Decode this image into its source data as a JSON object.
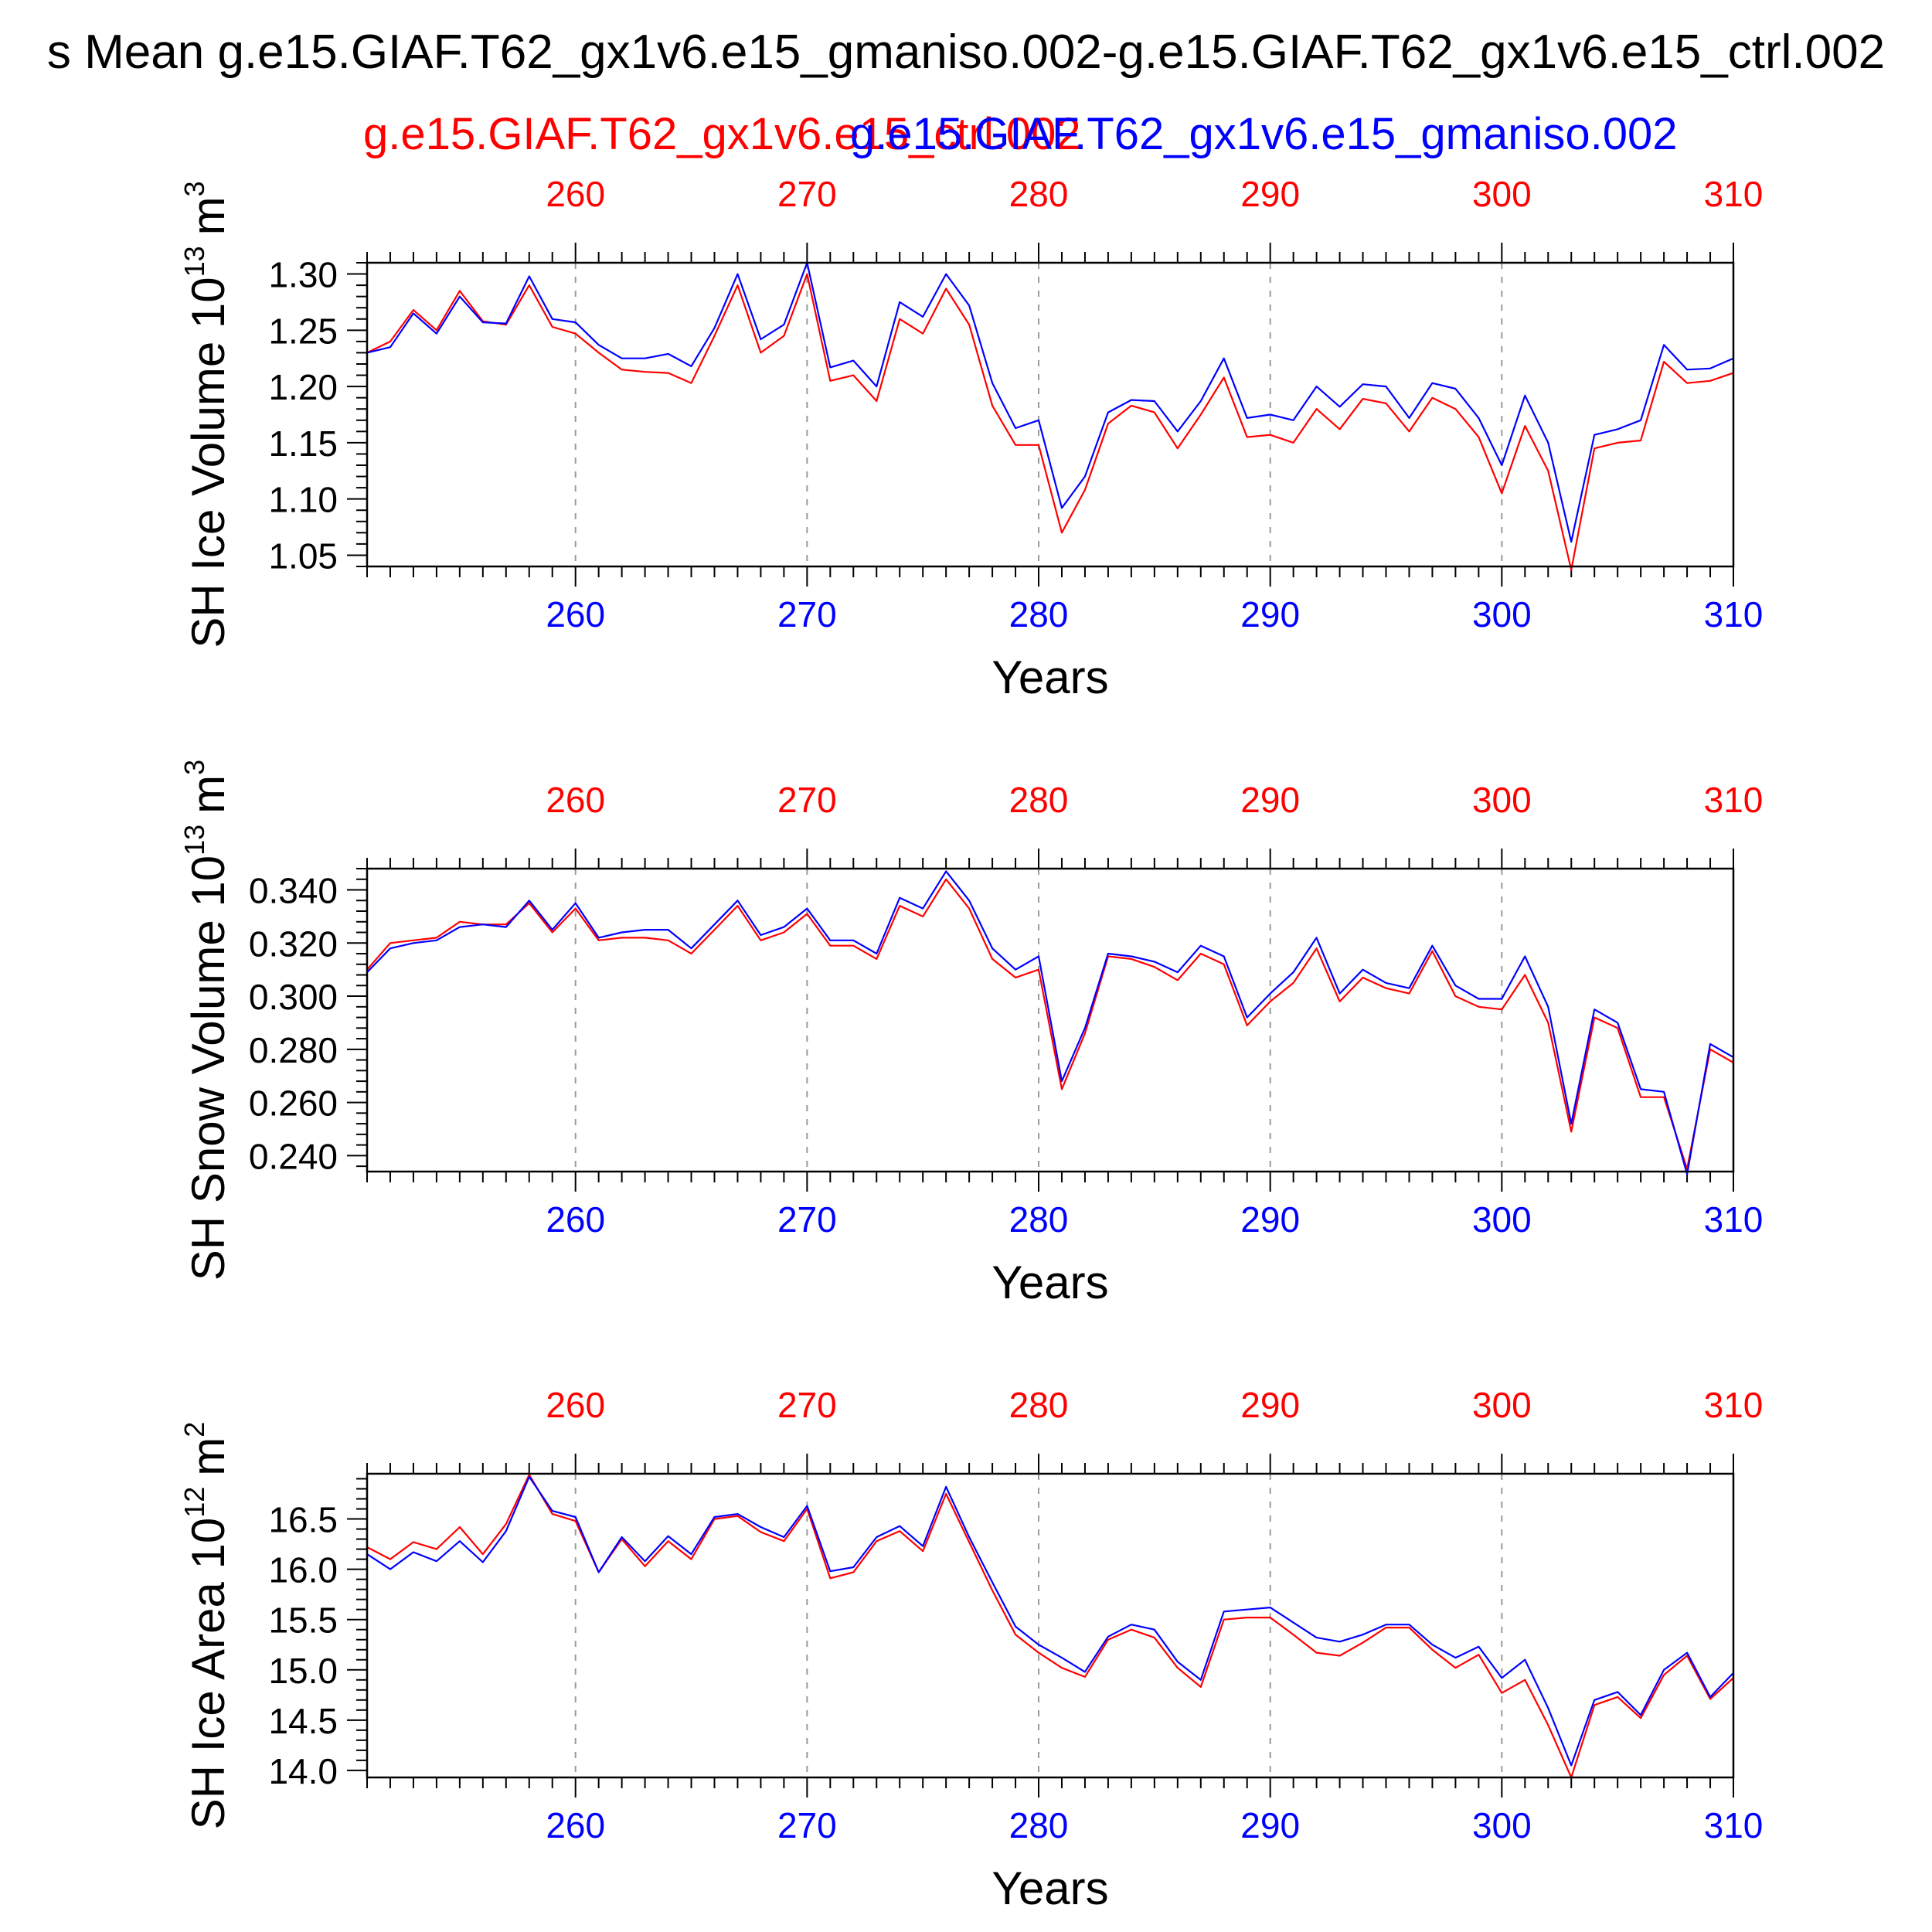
{
  "title": "s Mean g.e15.GIAF.T62_gx1v6.e15_gmaniso.002-g.e15.GIAF.T62_gx1v6.e15_ctrl.002",
  "legend": {
    "red_label": "g.e15.GIAF.T62_gx1v6.e15_ctrl.002",
    "blue_label": "g.e15.GIAF.T62_gx1v6.e15_gmaniso.002"
  },
  "colors": {
    "red": "#ff0000",
    "blue": "#0000ff",
    "axis": "#000000",
    "grid": "#9a9a9a"
  },
  "chart_data": [
    {
      "type": "line",
      "ylabel_main": "SH Ice Volume 10",
      "ylabel_exp": "13",
      "ylabel_unit": "m",
      "ylabel_unit_exp": "3",
      "xlabel": "Years",
      "xlim": [
        251,
        310
      ],
      "ylim": [
        1.04,
        1.31
      ],
      "grid": true,
      "xticks": [
        260,
        270,
        280,
        290,
        300,
        310
      ],
      "xtick_labels": [
        "260",
        "270",
        "280",
        "290",
        "300",
        "310"
      ],
      "yticks": [
        1.05,
        1.1,
        1.15,
        1.2,
        1.25,
        1.3
      ],
      "ytick_labels": [
        "1.05",
        "1.10",
        "1.15",
        "1.20",
        "1.25",
        "1.30"
      ],
      "x": [
        251,
        252,
        253,
        254,
        255,
        256,
        257,
        258,
        259,
        260,
        261,
        262,
        263,
        264,
        265,
        266,
        267,
        268,
        269,
        270,
        271,
        272,
        273,
        274,
        275,
        276,
        277,
        278,
        279,
        280,
        281,
        282,
        283,
        284,
        285,
        286,
        287,
        288,
        289,
        290,
        291,
        292,
        293,
        294,
        295,
        296,
        297,
        298,
        299,
        300,
        301,
        302,
        303,
        304,
        305,
        306,
        307,
        308,
        309,
        310
      ],
      "series": [
        {
          "name": "g.e15.GIAF.T62_gx1v6.e15_ctrl.002",
          "color": "#ff0000",
          "values": [
            1.23,
            1.24,
            1.268,
            1.25,
            1.285,
            1.258,
            1.255,
            1.29,
            1.253,
            1.247,
            1.23,
            1.215,
            1.213,
            1.212,
            1.203,
            1.245,
            1.29,
            1.23,
            1.245,
            1.3,
            1.205,
            1.21,
            1.187,
            1.26,
            1.247,
            1.287,
            1.255,
            1.183,
            1.148,
            1.148,
            1.07,
            1.108,
            1.167,
            1.183,
            1.177,
            1.145,
            1.175,
            1.208,
            1.155,
            1.157,
            1.15,
            1.18,
            1.162,
            1.189,
            1.185,
            1.16,
            1.19,
            1.18,
            1.155,
            1.105,
            1.165,
            1.125,
            1.037,
            1.145,
            1.15,
            1.152,
            1.222,
            1.203,
            1.205,
            1.212
          ]
        },
        {
          "name": "g.e15.GIAF.T62_gx1v6.e15_gmaniso.002",
          "color": "#0000ff",
          "values": [
            1.23,
            1.235,
            1.265,
            1.247,
            1.28,
            1.257,
            1.256,
            1.298,
            1.26,
            1.257,
            1.237,
            1.225,
            1.225,
            1.229,
            1.218,
            1.252,
            1.3,
            1.242,
            1.255,
            1.31,
            1.217,
            1.223,
            1.2,
            1.275,
            1.262,
            1.3,
            1.272,
            1.203,
            1.163,
            1.17,
            1.092,
            1.12,
            1.177,
            1.188,
            1.187,
            1.16,
            1.187,
            1.225,
            1.172,
            1.175,
            1.17,
            1.2,
            1.182,
            1.202,
            1.2,
            1.172,
            1.203,
            1.198,
            1.172,
            1.13,
            1.192,
            1.15,
            1.062,
            1.157,
            1.162,
            1.17,
            1.237,
            1.215,
            1.216,
            1.225
          ]
        }
      ]
    },
    {
      "type": "line",
      "ylabel_main": "SH Snow Volume 10",
      "ylabel_exp": "13",
      "ylabel_unit": "m",
      "ylabel_unit_exp": "3",
      "xlabel": "Years",
      "xlim": [
        251,
        310
      ],
      "ylim": [
        0.234,
        0.348
      ],
      "grid": true,
      "xticks": [
        260,
        270,
        280,
        290,
        300,
        310
      ],
      "xtick_labels": [
        "260",
        "270",
        "280",
        "290",
        "300",
        "310"
      ],
      "yticks": [
        0.24,
        0.26,
        0.28,
        0.3,
        0.32,
        0.34
      ],
      "ytick_labels": [
        "0.240",
        "0.260",
        "0.280",
        "0.300",
        "0.320",
        "0.340"
      ],
      "x": [
        251,
        252,
        253,
        254,
        255,
        256,
        257,
        258,
        259,
        260,
        261,
        262,
        263,
        264,
        265,
        266,
        267,
        268,
        269,
        270,
        271,
        272,
        273,
        274,
        275,
        276,
        277,
        278,
        279,
        280,
        281,
        282,
        283,
        284,
        285,
        286,
        287,
        288,
        289,
        290,
        291,
        292,
        293,
        294,
        295,
        296,
        297,
        298,
        299,
        300,
        301,
        302,
        303,
        304,
        305,
        306,
        307,
        308,
        309,
        310
      ],
      "series": [
        {
          "name": "g.e15.GIAF.T62_gx1v6.e15_ctrl.002",
          "color": "#ff0000",
          "values": [
            0.31,
            0.32,
            0.321,
            0.322,
            0.328,
            0.327,
            0.327,
            0.335,
            0.324,
            0.333,
            0.321,
            0.322,
            0.322,
            0.321,
            0.316,
            0.325,
            0.334,
            0.321,
            0.324,
            0.331,
            0.319,
            0.319,
            0.314,
            0.334,
            0.33,
            0.344,
            0.333,
            0.314,
            0.307,
            0.31,
            0.265,
            0.286,
            0.315,
            0.314,
            0.311,
            0.306,
            0.316,
            0.312,
            0.289,
            0.298,
            0.305,
            0.318,
            0.298,
            0.307,
            0.303,
            0.301,
            0.317,
            0.3,
            0.296,
            0.295,
            0.308,
            0.29,
            0.249,
            0.292,
            0.288,
            0.262,
            0.262,
            0.235,
            0.28,
            0.275
          ]
        },
        {
          "name": "g.e15.GIAF.T62_gx1v6.e15_gmaniso.002",
          "color": "#0000ff",
          "values": [
            0.309,
            0.318,
            0.32,
            0.321,
            0.326,
            0.327,
            0.326,
            0.336,
            0.325,
            0.335,
            0.322,
            0.324,
            0.325,
            0.325,
            0.318,
            0.327,
            0.336,
            0.323,
            0.326,
            0.333,
            0.321,
            0.321,
            0.316,
            0.337,
            0.333,
            0.347,
            0.336,
            0.318,
            0.31,
            0.315,
            0.268,
            0.288,
            0.316,
            0.315,
            0.313,
            0.309,
            0.319,
            0.315,
            0.292,
            0.301,
            0.309,
            0.322,
            0.301,
            0.31,
            0.305,
            0.303,
            0.319,
            0.304,
            0.299,
            0.299,
            0.315,
            0.296,
            0.252,
            0.295,
            0.29,
            0.265,
            0.264,
            0.233,
            0.282,
            0.277
          ]
        }
      ]
    },
    {
      "type": "line",
      "ylabel_main": "SH Ice Area 10",
      "ylabel_exp": "12",
      "ylabel_unit": "m",
      "ylabel_unit_exp": "2",
      "xlabel": "Years",
      "xlim": [
        251,
        310
      ],
      "ylim": [
        13.93,
        16.95
      ],
      "grid": true,
      "xticks": [
        260,
        270,
        280,
        290,
        300,
        310
      ],
      "xtick_labels": [
        "260",
        "270",
        "280",
        "290",
        "300",
        "310"
      ],
      "yticks": [
        14.0,
        14.5,
        15.0,
        15.5,
        16.0,
        16.5
      ],
      "ytick_labels": [
        "14.0",
        "14.5",
        "15.0",
        "15.5",
        "16.0",
        "16.5"
      ],
      "x": [
        251,
        252,
        253,
        254,
        255,
        256,
        257,
        258,
        259,
        260,
        261,
        262,
        263,
        264,
        265,
        266,
        267,
        268,
        269,
        270,
        271,
        272,
        273,
        274,
        275,
        276,
        277,
        278,
        279,
        280,
        281,
        282,
        283,
        284,
        285,
        286,
        287,
        288,
        289,
        290,
        291,
        292,
        293,
        294,
        295,
        296,
        297,
        298,
        299,
        300,
        301,
        302,
        303,
        304,
        305,
        306,
        307,
        308,
        309,
        310
      ],
      "series": [
        {
          "name": "g.e15.GIAF.T62_gx1v6.e15_ctrl.002",
          "color": "#ff0000",
          "values": [
            16.22,
            16.1,
            16.27,
            16.2,
            16.42,
            16.15,
            16.45,
            16.94,
            16.55,
            16.48,
            15.97,
            16.3,
            16.03,
            16.28,
            16.1,
            16.5,
            16.53,
            16.37,
            16.28,
            16.6,
            15.91,
            15.97,
            16.28,
            16.38,
            16.18,
            16.75,
            16.27,
            15.79,
            15.35,
            15.17,
            15.02,
            14.93,
            15.3,
            15.4,
            15.32,
            15.02,
            14.83,
            15.5,
            15.52,
            15.52,
            15.35,
            15.17,
            15.14,
            15.27,
            15.42,
            15.42,
            15.2,
            15.02,
            15.15,
            14.77,
            14.9,
            14.45,
            13.93,
            14.65,
            14.73,
            14.52,
            14.95,
            15.14,
            14.71,
            14.92
          ]
        },
        {
          "name": "g.e15.GIAF.T62_gx1v6.e15_gmaniso.002",
          "color": "#0000ff",
          "values": [
            16.15,
            16.0,
            16.17,
            16.08,
            16.28,
            16.07,
            16.38,
            16.92,
            16.58,
            16.52,
            15.97,
            16.32,
            16.08,
            16.33,
            16.15,
            16.52,
            16.55,
            16.42,
            16.32,
            16.63,
            15.98,
            16.02,
            16.32,
            16.43,
            16.23,
            16.82,
            16.32,
            15.87,
            15.43,
            15.25,
            15.12,
            14.98,
            15.33,
            15.45,
            15.4,
            15.08,
            14.9,
            15.58,
            15.6,
            15.62,
            15.47,
            15.32,
            15.28,
            15.35,
            15.45,
            15.45,
            15.25,
            15.12,
            15.23,
            14.92,
            15.1,
            14.62,
            14.05,
            14.7,
            14.78,
            14.55,
            15.0,
            15.17,
            14.73,
            14.97
          ]
        }
      ]
    }
  ]
}
